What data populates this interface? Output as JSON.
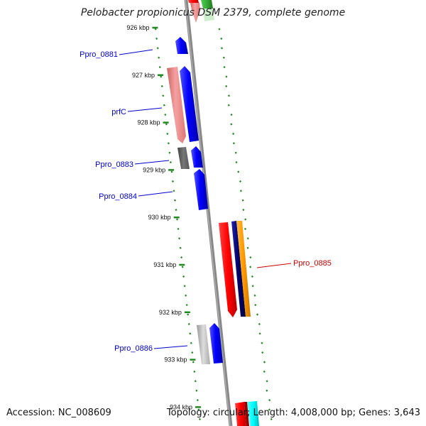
{
  "title": "Pelobacter propionicus DSM 2379, complete genome",
  "footer": {
    "accession": "Accession: NC_008609",
    "topology": "Topology: circular; Length: 4,008,000 bp; Genes: 3,643"
  },
  "ruler": {
    "unit": "kbp",
    "ticks": [
      {
        "kbp": 926,
        "label": "926 kbp"
      },
      {
        "kbp": 927,
        "label": "927 kbp"
      },
      {
        "kbp": 928,
        "label": "928 kbp"
      },
      {
        "kbp": 929,
        "label": "929 kbp"
      },
      {
        "kbp": 930,
        "label": "930 kbp"
      },
      {
        "kbp": 931,
        "label": "931 kbp"
      },
      {
        "kbp": 932,
        "label": "932 kbp"
      },
      {
        "kbp": 933,
        "label": "933 kbp"
      },
      {
        "kbp": 934,
        "label": "934 kbp"
      }
    ]
  },
  "gene_labels": [
    {
      "name": "Ppro_0881",
      "color": "#0000cc"
    },
    {
      "name": "prfC",
      "color": "#0000cc"
    },
    {
      "name": "Ppro_0883",
      "color": "#0000cc"
    },
    {
      "name": "Ppro_0884",
      "color": "#0000cc"
    },
    {
      "name": "Ppro_0885",
      "color": "#cc0000"
    },
    {
      "name": "Ppro_0886",
      "color": "#0000cc"
    }
  ],
  "colors": {
    "backbone": "#888888",
    "gc_dots": "#228822",
    "blue_gene": "#0000ff",
    "pink_gene": "#ee8888",
    "gray_gene": "#666666",
    "red_gene": "#ff0000",
    "navy_gene": "#000080",
    "orange_gene": "#ff9900",
    "silver_gene": "#bbbbbb",
    "cyan_gene": "#00ffff",
    "green_gene": "#33aa33"
  }
}
